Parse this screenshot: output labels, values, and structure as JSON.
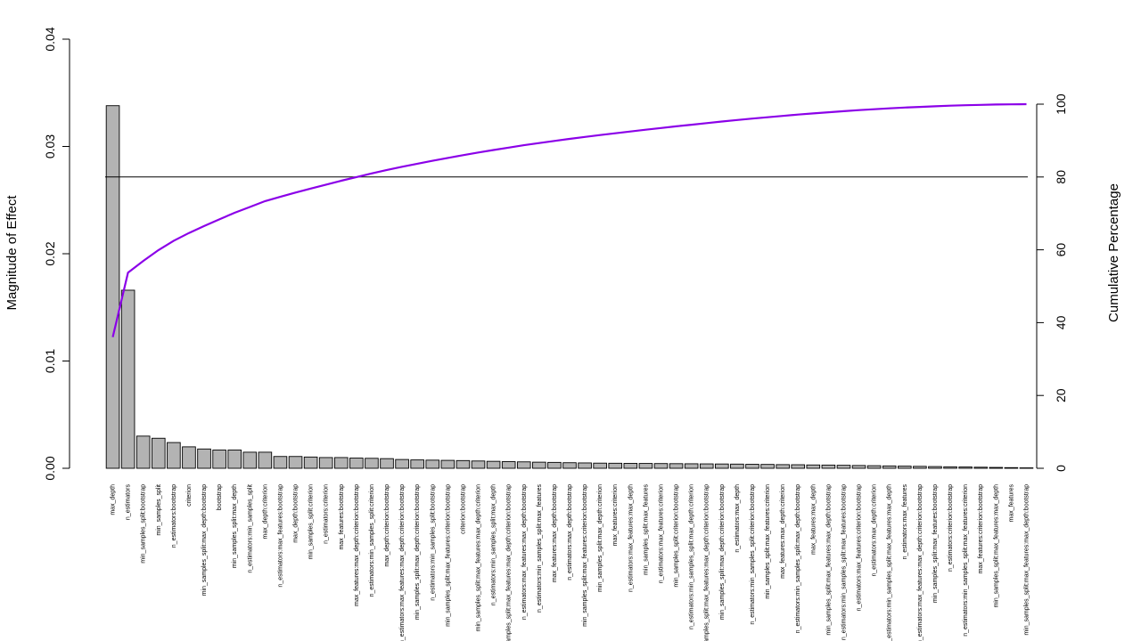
{
  "chart_data": {
    "type": "bar",
    "ylabel": "Magnitude of Effect",
    "y2label": "Cumulative Percentage",
    "ylim": [
      0,
      0.04
    ],
    "y2lim": [
      0,
      100
    ],
    "yticks": [
      "0.00",
      "0.01",
      "0.02",
      "0.03",
      "0.04"
    ],
    "y2ticks": [
      "0",
      "20",
      "40",
      "60",
      "80",
      "100"
    ],
    "reference_line_pct": 80,
    "colors": {
      "bar_fill": "#b3b3b3",
      "bar_stroke": "#000000",
      "cumulative_line": "#8b00e8",
      "reference_line": "#000000"
    },
    "categories": [
      "max_depth",
      "n_estimators",
      "min_samples_split:bootstrap",
      "min_samples_split",
      "n_estimators:bootstrap",
      "criterion",
      "min_samples_split:max_depth:bootstrap",
      "bootstrap",
      "min_samples_split:max_depth",
      "n_estimators:min_samples_split",
      "max_depth:criterion",
      "n_estimators:max_features:bootstrap",
      "max_depth:bootstrap",
      "min_samples_split:criterion",
      "n_estimators:criterion",
      "max_features:bootstrap",
      "max_features:max_depth:criterion:bootstrap",
      "n_estimators:min_samples_split:criterion",
      "max_depth:criterion:bootstrap",
      "n_estimators:max_features:max_depth:criterion:bootstrap",
      "min_samples_split:max_depth:criterion:bootstrap",
      "n_estimators:min_samples_split:bootstrap",
      "min_samples_split:max_features:criterion:bootstrap",
      "criterion:bootstrap",
      "min_samples_split:max_features:max_depth:criterion",
      "n_estimators:min_samples_split:max_depth",
      "min_samples_split:max_features:max_depth:criterion:bootstrap",
      "n_estimators:max_features:max_depth:bootstrap",
      "n_estimators:min_samples_split:max_features",
      "max_features:max_depth:bootstrap",
      "n_estimators:max_depth:bootstrap",
      "min_samples_split:max_features:criterion:bootstrap",
      "min_samples_split:max_depth:criterion",
      "max_features:criterion",
      "n_estimators:max_features:max_depth",
      "min_samples_split:max_features",
      "n_estimators:max_features:criterion",
      "min_samples_split:criterion:bootstrap",
      "n_estimators:min_samples_split:max_depth:criterion",
      "min_samples_split:max_features:max_depth:criterion:bootstrap",
      "min_samples_split:max_depth:criterion:bootstrap",
      "n_estimators:max_depth",
      "n_estimators:min_samples_split:criterion:bootstrap",
      "min_samples_split:max_features:criterion",
      "max_features:max_depth:criterion",
      "n_estimators:min_samples_split:max_depth:bootstrap",
      "max_features:max_depth",
      "min_samples_split:max_features:max_depth:bootstrap",
      "n_estimators:min_samples_split:max_features:bootstrap",
      "n_estimators:max_features:criterion:bootstrap",
      "n_estimators:max_depth:criterion",
      "n_estimators:min_samples_split:max_features:max_depth",
      "n_estimators:max_features",
      "n_estimators:max_features:max_depth:criterion:bootstrap",
      "min_samples_split:max_features:bootstrap",
      "n_estimators:criterion:bootstrap",
      "n_estimators:min_samples_split:max_features:criterion",
      "max_features:criterion:bootstrap",
      "min_samples_split:max_features:max_depth",
      "max_features",
      "min_samples_split:max_features:max_depth:bootstrap"
    ],
    "values": [
      0.0338,
      0.0166,
      0.003,
      0.0028,
      0.0024,
      0.002,
      0.0018,
      0.0017,
      0.0017,
      0.0015,
      0.0015,
      0.0011,
      0.0011,
      0.00105,
      0.001,
      0.001,
      0.00095,
      0.00093,
      0.0009,
      0.00082,
      0.00078,
      0.00076,
      0.00074,
      0.00072,
      0.00068,
      0.00065,
      0.00062,
      0.0006,
      0.00057,
      0.00055,
      0.00052,
      0.0005,
      0.00048,
      0.00047,
      0.00046,
      0.00045,
      0.00044,
      0.00043,
      0.00042,
      0.00041,
      0.0004,
      0.00039,
      0.00037,
      0.00036,
      0.00034,
      0.00033,
      0.00031,
      0.0003,
      0.00028,
      0.00026,
      0.00024,
      0.00022,
      0.0002,
      0.00018,
      0.00016,
      0.00014,
      0.00012,
      0.0001,
      8e-05,
      6e-05,
      4e-05
    ]
  }
}
